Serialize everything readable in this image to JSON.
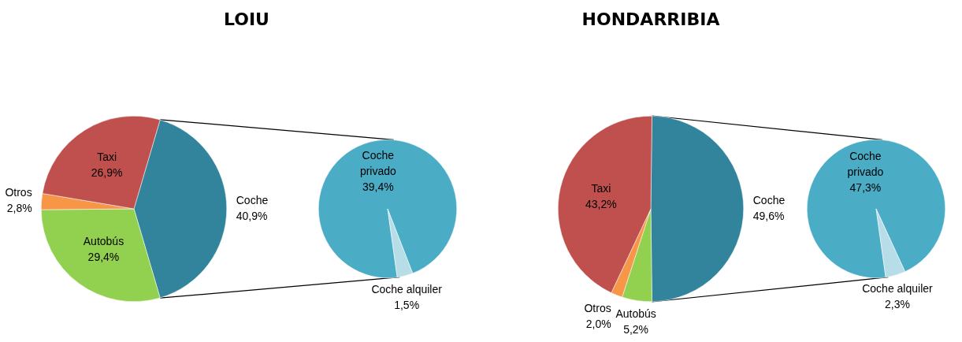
{
  "chart_data": [
    {
      "type": "pie",
      "title": "LOIU",
      "categories": [
        "Coche",
        "Autobús",
        "Otros",
        "Taxi"
      ],
      "values": [
        40.9,
        29.4,
        2.8,
        26.9
      ],
      "value_labels": [
        "40,9%",
        "29,4%",
        "2,8%",
        "26,9%"
      ],
      "colors": [
        "#31849b",
        "#92d050",
        "#f79646",
        "#c0504d"
      ]
    },
    {
      "type": "pie",
      "categories": [
        "Coche privado",
        "Coche alquiler"
      ],
      "values": [
        39.4,
        1.5
      ],
      "value_labels": [
        "39,4%",
        "1,5%"
      ],
      "colors": [
        "#4bacc6",
        "#b7dee8"
      ]
    },
    {
      "type": "pie",
      "title": "HONDARRIBIA",
      "categories": [
        "Coche",
        "Autobús",
        "Otros",
        "Taxi"
      ],
      "values": [
        49.6,
        5.2,
        2.0,
        43.2
      ],
      "value_labels": [
        "49,6%",
        "5,2%",
        "2,0%",
        "43,2%"
      ],
      "colors": [
        "#31849b",
        "#92d050",
        "#f79646",
        "#c0504d"
      ]
    },
    {
      "type": "pie",
      "categories": [
        "Coche privado",
        "Coche alquiler"
      ],
      "values": [
        47.3,
        2.3
      ],
      "value_labels": [
        "47,3%",
        "2,3%"
      ],
      "colors": [
        "#4bacc6",
        "#b7dee8"
      ]
    }
  ]
}
